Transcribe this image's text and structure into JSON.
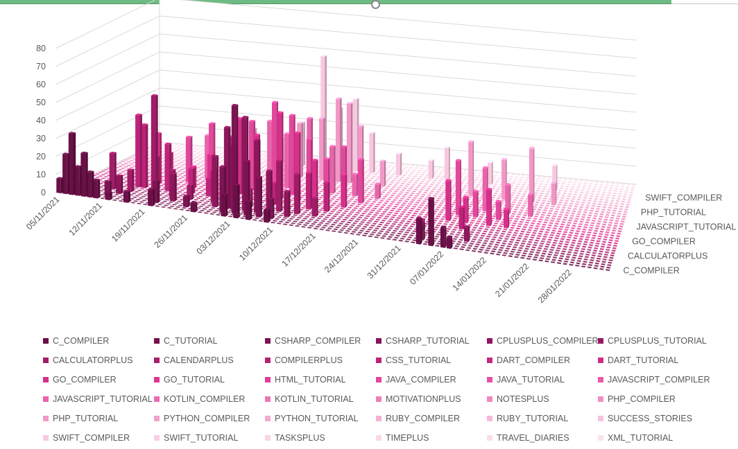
{
  "window": {
    "accent_color": "#6dbb83"
  },
  "chart_data": {
    "type": "bar",
    "subtype": "3d-column",
    "title": "",
    "xlabel": "",
    "ylabel": "",
    "ylim": [
      0,
      80
    ],
    "y_ticks": [
      "0",
      "10",
      "20",
      "30",
      "40",
      "50",
      "60",
      "70",
      "80"
    ],
    "gridlines": true,
    "legend_position": "bottom",
    "date_axis_labels": [
      "05/11/2021",
      "12/11/2021",
      "19/11/2021",
      "26/11/2021",
      "03/12/2021",
      "10/12/2021",
      "17/12/2021",
      "24/12/2021",
      "31/12/2021",
      "07/01/2022",
      "14/01/2022",
      "21/01/2022",
      "28/01/2022"
    ],
    "depth_axis_labels": [
      "C_COMPILER",
      "CALCULATORPLUS",
      "GO_COMPILER",
      "JAVASCRIPT_TUTORIAL",
      "PHP_TUTORIAL",
      "SWIFT_COMPILER"
    ],
    "series_names": [
      "C_COMPILER",
      "C_TUTORIAL",
      "CSHARP_COMPILER",
      "CSHARP_TUTORIAL",
      "CPLUSPLUS_COMPILER",
      "CPLUSPLUS_TUTORIAL",
      "CALCULATORPLUS",
      "CALENDARPLUS",
      "COMPILERPLUS",
      "CSS_TUTORIAL",
      "DART_COMPILER",
      "DART_TUTORIAL",
      "GO_COMPILER",
      "GO_TUTORIAL",
      "HTML_TUTORIAL",
      "JAVA_COMPILER",
      "JAVA_TUTORIAL",
      "JAVASCRIPT_COMPILER",
      "JAVASCRIPT_TUTORIAL",
      "KOTLIN_COMPILER",
      "KOTLIN_TUTORIAL",
      "MOTIVATIONPLUS",
      "NOTESPLUS",
      "PHP_COMPILER",
      "PHP_TUTORIAL",
      "PYTHON_COMPILER",
      "PYTHON_TUTORIAL",
      "RUBY_COMPILER",
      "RUBY_TUTORIAL",
      "SUCCESS_STORIES",
      "SWIFT_COMPILER",
      "SWIFT_TUTORIAL",
      "TASKSPLUS",
      "TIMEPLUS",
      "TRAVEL_DIARIES",
      "XML_TUTORIAL"
    ],
    "series_colors": [
      "#6b0f47",
      "#73114c",
      "#7c1352",
      "#861557",
      "#8e175c",
      "#981962",
      "#a11c68",
      "#aa1e6d",
      "#b42173",
      "#bd2479",
      "#c6287f",
      "#cf2c85",
      "#d6308b",
      "#dc3691",
      "#e03e97",
      "#e3479c",
      "#e550a1",
      "#e75aa6",
      "#e963ab",
      "#eb6cb0",
      "#ec75b5",
      "#ee7eb9",
      "#ef87be",
      "#f090c3",
      "#f298c7",
      "#f3a1cc",
      "#f4a9d0",
      "#f5b1d4",
      "#f6b8d8",
      "#f7c0dc",
      "#f8c7e0",
      "#f9cde3",
      "#fad3e6",
      "#fad8e9",
      "#fbddec",
      "#fce2ef"
    ],
    "bars": [
      {
        "series": "C_COMPILER",
        "date": "05/11/2021",
        "value": 8
      },
      {
        "series": "C_COMPILER",
        "date": "06/11/2021",
        "value": 22
      },
      {
        "series": "C_COMPILER",
        "date": "07/11/2021",
        "value": 34
      },
      {
        "series": "C_COMPILER",
        "date": "08/11/2021",
        "value": 16
      },
      {
        "series": "C_COMPILER",
        "date": "09/11/2021",
        "value": 24
      },
      {
        "series": "C_COMPILER",
        "date": "10/11/2021",
        "value": 14
      },
      {
        "series": "C_COMPILER",
        "date": "11/11/2021",
        "value": 10
      },
      {
        "series": "C_COMPILER",
        "date": "13/11/2021",
        "value": 4
      },
      {
        "series": "C_COMPILER",
        "date": "16/11/2021",
        "value": 6
      },
      {
        "series": "C_COMPILER",
        "date": "20/11/2021",
        "value": 9
      },
      {
        "series": "C_COMPILER",
        "date": "27/11/2021",
        "value": 5
      },
      {
        "series": "C_COMPILER",
        "date": "02/12/2021",
        "value": 12
      },
      {
        "series": "C_COMPILER",
        "date": "04/12/2021",
        "value": 18
      },
      {
        "series": "C_COMPILER",
        "date": "06/12/2021",
        "value": 10
      },
      {
        "series": "C_COMPILER",
        "date": "09/12/2021",
        "value": 7
      },
      {
        "series": "C_COMPILER",
        "date": "03/01/2022",
        "value": 14
      },
      {
        "series": "C_COMPILER",
        "date": "05/01/2022",
        "value": 26
      },
      {
        "series": "C_COMPILER",
        "date": "07/01/2022",
        "value": 11
      },
      {
        "series": "C_COMPILER",
        "date": "08/01/2022",
        "value": 6
      },
      {
        "series": "CSHARP_COMPILER",
        "date": "12/11/2021",
        "value": 8
      },
      {
        "series": "CSHARP_COMPILER",
        "date": "20/11/2021",
        "value": 12
      },
      {
        "series": "CSHARP_COMPILER",
        "date": "25/11/2021",
        "value": 6
      },
      {
        "series": "CSHARP_COMPILER",
        "date": "01/12/2021",
        "value": 25
      },
      {
        "series": "CSHARP_COMPILER",
        "date": "03/12/2021",
        "value": 60
      },
      {
        "series": "CSHARP_COMPILER",
        "date": "05/12/2021",
        "value": 30
      },
      {
        "series": "CSHARP_COMPILER",
        "date": "07/12/2021",
        "value": 22
      },
      {
        "series": "CSHARP_COMPILER",
        "date": "09/12/2021",
        "value": 11
      },
      {
        "series": "CSHARP_COMPILER",
        "date": "03/01/2022",
        "value": 9
      },
      {
        "series": "CPLUSPLUS_COMPILER",
        "date": "13/11/2021",
        "value": 10
      },
      {
        "series": "CPLUSPLUS_COMPILER",
        "date": "22/11/2021",
        "value": 15
      },
      {
        "series": "CPLUSPLUS_COMPILER",
        "date": "29/11/2021",
        "value": 28
      },
      {
        "series": "CPLUSPLUS_COMPILER",
        "date": "01/12/2021",
        "value": 45
      },
      {
        "series": "CPLUSPLUS_COMPILER",
        "date": "02/12/2021",
        "value": 35
      },
      {
        "series": "CPLUSPLUS_COMPILER",
        "date": "04/12/2021",
        "value": 52
      },
      {
        "series": "CPLUSPLUS_COMPILER",
        "date": "06/12/2021",
        "value": 40
      },
      {
        "series": "CPLUSPLUS_COMPILER",
        "date": "08/12/2021",
        "value": 24
      },
      {
        "series": "CPLUSPLUS_COMPILER",
        "date": "11/12/2021",
        "value": 14
      },
      {
        "series": "CPLUSPLUS_COMPILER",
        "date": "10/01/2022",
        "value": 8
      },
      {
        "series": "CALCULATORPLUS",
        "date": "11/11/2021",
        "value": 20
      },
      {
        "series": "CALCULATORPLUS",
        "date": "14/11/2021",
        "value": 12
      },
      {
        "series": "CALCULATORPLUS",
        "date": "18/11/2021",
        "value": 55
      },
      {
        "series": "CALCULATORPLUS",
        "date": "21/11/2021",
        "value": 15
      },
      {
        "series": "CALCULATORPLUS",
        "date": "24/11/2021",
        "value": 8
      },
      {
        "series": "CALCULATORPLUS",
        "date": "28/11/2021",
        "value": 18
      },
      {
        "series": "CALCULATORPLUS",
        "date": "04/12/2021",
        "value": 10
      },
      {
        "series": "CALCULATORPLUS",
        "date": "09/12/2021",
        "value": 28
      },
      {
        "series": "CALCULATORPLUS",
        "date": "12/12/2021",
        "value": 22
      },
      {
        "series": "CALCULATORPLUS",
        "date": "15/12/2021",
        "value": 10
      },
      {
        "series": "CALCULATORPLUS",
        "date": "02/01/2022",
        "value": 6
      },
      {
        "series": "CSS_TUTORIAL",
        "date": "14/11/2021",
        "value": 40
      },
      {
        "series": "CSS_TUTORIAL",
        "date": "15/11/2021",
        "value": 35
      },
      {
        "series": "CSS_TUTORIAL",
        "date": "17/11/2021",
        "value": 18
      },
      {
        "series": "CSS_TUTORIAL",
        "date": "19/11/2021",
        "value": 26
      },
      {
        "series": "CSS_TUTORIAL",
        "date": "23/11/2021",
        "value": 14
      },
      {
        "series": "CSS_TUTORIAL",
        "date": "26/11/2021",
        "value": 10
      },
      {
        "series": "CSS_TUTORIAL",
        "date": "29/11/2021",
        "value": 16
      },
      {
        "series": "CSS_TUTORIAL",
        "date": "07/12/2021",
        "value": 12
      },
      {
        "series": "CSS_TUTORIAL",
        "date": "13/12/2021",
        "value": 20
      },
      {
        "series": "CSS_TUTORIAL",
        "date": "16/12/2021",
        "value": 16
      },
      {
        "series": "CSS_TUTORIAL",
        "date": "08/01/2022",
        "value": 12
      },
      {
        "series": "GO_COMPILER",
        "date": "16/11/2021",
        "value": 28
      },
      {
        "series": "GO_COMPILER",
        "date": "18/11/2021",
        "value": 18
      },
      {
        "series": "GO_COMPILER",
        "date": "22/11/2021",
        "value": 12
      },
      {
        "series": "GO_COMPILER",
        "date": "25/11/2021",
        "value": 20
      },
      {
        "series": "GO_COMPILER",
        "date": "28/11/2021",
        "value": 30
      },
      {
        "series": "GO_COMPILER",
        "date": "30/11/2021",
        "value": 42
      },
      {
        "series": "GO_COMPILER",
        "date": "03/12/2021",
        "value": 34
      },
      {
        "series": "GO_COMPILER",
        "date": "07/12/2021",
        "value": 48
      },
      {
        "series": "GO_COMPILER",
        "date": "10/12/2021",
        "value": 38
      },
      {
        "series": "GO_COMPILER",
        "date": "13/12/2021",
        "value": 24
      },
      {
        "series": "GO_COMPILER",
        "date": "18/12/2021",
        "value": 18
      },
      {
        "series": "GO_COMPILER",
        "date": "05/01/2022",
        "value": 22
      },
      {
        "series": "GO_COMPILER",
        "date": "08/01/2022",
        "value": 14
      },
      {
        "series": "GO_COMPILER",
        "date": "12/01/2022",
        "value": 20
      },
      {
        "series": "GO_COMPILER",
        "date": "15/01/2022",
        "value": 10
      },
      {
        "series": "JAVA_COMPILER",
        "date": "20/11/2021",
        "value": 25
      },
      {
        "series": "JAVA_COMPILER",
        "date": "24/11/2021",
        "value": 34
      },
      {
        "series": "JAVA_COMPILER",
        "date": "27/11/2021",
        "value": 28
      },
      {
        "series": "JAVA_COMPILER",
        "date": "01/12/2021",
        "value": 38
      },
      {
        "series": "JAVA_COMPILER",
        "date": "05/12/2021",
        "value": 50
      },
      {
        "series": "JAVA_COMPILER",
        "date": "08/12/2021",
        "value": 44
      },
      {
        "series": "JAVA_COMPILER",
        "date": "11/12/2021",
        "value": 32
      },
      {
        "series": "JAVA_COMPILER",
        "date": "14/12/2021",
        "value": 22
      },
      {
        "series": "JAVA_COMPILER",
        "date": "17/12/2021",
        "value": 30
      },
      {
        "series": "JAVA_COMPILER",
        "date": "20/12/2021",
        "value": 24
      },
      {
        "series": "JAVA_COMPILER",
        "date": "06/01/2022",
        "value": 30
      },
      {
        "series": "JAVA_COMPILER",
        "date": "09/01/2022",
        "value": 14
      },
      {
        "series": "JAVA_COMPILER",
        "date": "13/01/2022",
        "value": 10
      },
      {
        "series": "JAVASCRIPT_TUTORIAL",
        "date": "22/11/2021",
        "value": 24
      },
      {
        "series": "JAVASCRIPT_TUTORIAL",
        "date": "26/11/2021",
        "value": 20
      },
      {
        "series": "JAVASCRIPT_TUTORIAL",
        "date": "30/11/2021",
        "value": 28
      },
      {
        "series": "JAVASCRIPT_TUTORIAL",
        "date": "03/12/2021",
        "value": 36
      },
      {
        "series": "JAVASCRIPT_TUTORIAL",
        "date": "06/12/2021",
        "value": 30
      },
      {
        "series": "JAVASCRIPT_TUTORIAL",
        "date": "10/12/2021",
        "value": 40
      },
      {
        "series": "JAVASCRIPT_TUTORIAL",
        "date": "14/12/2021",
        "value": 26
      },
      {
        "series": "JAVASCRIPT_TUTORIAL",
        "date": "18/12/2021",
        "value": 12
      },
      {
        "series": "JAVASCRIPT_TUTORIAL",
        "date": "22/12/2021",
        "value": 8
      },
      {
        "series": "JAVASCRIPT_TUTORIAL",
        "date": "10/01/2022",
        "value": 24
      },
      {
        "series": "JAVASCRIPT_TUTORIAL",
        "date": "14/01/2022",
        "value": 16
      },
      {
        "series": "JAVASCRIPT_TUTORIAL",
        "date": "18/01/2022",
        "value": 12
      },
      {
        "series": "PHP_TUTORIAL",
        "date": "24/11/2021",
        "value": 18
      },
      {
        "series": "PHP_TUTORIAL",
        "date": "28/11/2021",
        "value": 16
      },
      {
        "series": "PHP_TUTORIAL",
        "date": "02/12/2021",
        "value": 22
      },
      {
        "series": "PHP_TUTORIAL",
        "date": "06/12/2021",
        "value": 30
      },
      {
        "series": "PHP_TUTORIAL",
        "date": "10/12/2021",
        "value": 34
      },
      {
        "series": "PHP_TUTORIAL",
        "date": "13/12/2021",
        "value": 46
      },
      {
        "series": "PHP_TUTORIAL",
        "date": "15/12/2021",
        "value": 44
      },
      {
        "series": "PHP_TUTORIAL",
        "date": "17/12/2021",
        "value": 32
      },
      {
        "series": "PHP_TUTORIAL",
        "date": "21/12/2021",
        "value": 14
      },
      {
        "series": "PHP_TUTORIAL",
        "date": "06/01/2022",
        "value": 30
      },
      {
        "series": "PHP_TUTORIAL",
        "date": "12/01/2022",
        "value": 22
      },
      {
        "series": "PHP_TUTORIAL",
        "date": "17/01/2022",
        "value": 30
      },
      {
        "series": "PHP_TUTORIAL",
        "date": "21/01/2022",
        "value": 12
      },
      {
        "series": "SWIFT_COMPILER",
        "date": "25/11/2021",
        "value": 18
      },
      {
        "series": "SWIFT_COMPILER",
        "date": "30/11/2021",
        "value": 14
      },
      {
        "series": "SWIFT_COMPILER",
        "date": "04/12/2021",
        "value": 24
      },
      {
        "series": "SWIFT_COMPILER",
        "date": "08/12/2021",
        "value": 62
      },
      {
        "series": "SWIFT_COMPILER",
        "date": "11/12/2021",
        "value": 34
      },
      {
        "series": "SWIFT_COMPILER",
        "date": "14/12/2021",
        "value": 40
      },
      {
        "series": "SWIFT_COMPILER",
        "date": "17/12/2021",
        "value": 22
      },
      {
        "series": "SWIFT_COMPILER",
        "date": "22/12/2021",
        "value": 12
      },
      {
        "series": "SWIFT_COMPILER",
        "date": "28/12/2021",
        "value": 10
      },
      {
        "series": "SWIFT_COMPILER",
        "date": "31/12/2021",
        "value": 18
      },
      {
        "series": "SWIFT_COMPILER",
        "date": "08/01/2022",
        "value": 12
      },
      {
        "series": "SWIFT_COMPILER",
        "date": "20/01/2022",
        "value": 14
      }
    ]
  },
  "legend": {
    "items": [
      {
        "label": "C_COMPILER",
        "color": "#6b0f47"
      },
      {
        "label": "C_TUTORIAL",
        "color": "#73114c"
      },
      {
        "label": "CSHARP_COMPILER",
        "color": "#7c1352"
      },
      {
        "label": "CSHARP_TUTORIAL",
        "color": "#861557"
      },
      {
        "label": "CPLUSPLUS_COMPILER",
        "color": "#8e175c"
      },
      {
        "label": "CPLUSPLUS_TUTORIAL",
        "color": "#981962"
      },
      {
        "label": "CALCULATORPLUS",
        "color": "#a11c68"
      },
      {
        "label": "CALENDARPLUS",
        "color": "#aa1e6d"
      },
      {
        "label": "COMPILERPLUS",
        "color": "#b42173"
      },
      {
        "label": "CSS_TUTORIAL",
        "color": "#bd2479"
      },
      {
        "label": "DART_COMPILER",
        "color": "#c6287f"
      },
      {
        "label": "DART_TUTORIAL",
        "color": "#cf2c85"
      },
      {
        "label": "GO_COMPILER",
        "color": "#d6308b"
      },
      {
        "label": "GO_TUTORIAL",
        "color": "#dc3691"
      },
      {
        "label": "HTML_TUTORIAL",
        "color": "#e03e97"
      },
      {
        "label": "JAVA_COMPILER",
        "color": "#e3479c"
      },
      {
        "label": "JAVA_TUTORIAL",
        "color": "#e550a1"
      },
      {
        "label": "JAVASCRIPT_COMPILER",
        "color": "#e75aa6"
      },
      {
        "label": "JAVASCRIPT_TUTORIAL",
        "color": "#e963ab"
      },
      {
        "label": "KOTLIN_COMPILER",
        "color": "#eb6cb0"
      },
      {
        "label": "KOTLIN_TUTORIAL",
        "color": "#ec75b5"
      },
      {
        "label": "MOTIVATIONPLUS",
        "color": "#ee7eb9"
      },
      {
        "label": "NOTESPLUS",
        "color": "#ef87be"
      },
      {
        "label": "PHP_COMPILER",
        "color": "#f090c3"
      },
      {
        "label": "PHP_TUTORIAL",
        "color": "#f298c7"
      },
      {
        "label": "PYTHON_COMPILER",
        "color": "#f3a1cc"
      },
      {
        "label": "PYTHON_TUTORIAL",
        "color": "#f4a9d0"
      },
      {
        "label": "RUBY_COMPILER",
        "color": "#f5b1d4"
      },
      {
        "label": "RUBY_TUTORIAL",
        "color": "#f6b8d8"
      },
      {
        "label": "SUCCESS_STORIES",
        "color": "#f7c0dc"
      },
      {
        "label": "SWIFT_COMPILER",
        "color": "#f8c7e0"
      },
      {
        "label": "SWIFT_TUTORIAL",
        "color": "#f9cde3"
      },
      {
        "label": "TASKSPLUS",
        "color": "#fad3e6"
      },
      {
        "label": "TIMEPLUS",
        "color": "#fad8e9"
      },
      {
        "label": "TRAVEL_DIARIES",
        "color": "#fbddec"
      },
      {
        "label": "XML_TUTORIAL",
        "color": "#fce2ef"
      }
    ]
  }
}
